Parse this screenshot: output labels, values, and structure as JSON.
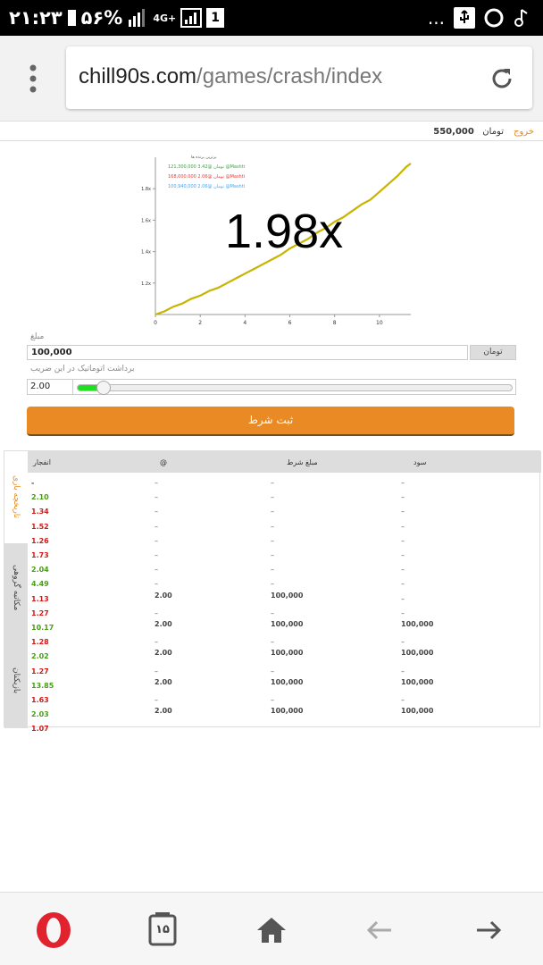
{
  "status_bar": {
    "time": "۲۱:۲۳",
    "battery_pct": "۵۶%",
    "network": "4G+",
    "notif_count": "1",
    "more": "..."
  },
  "browser": {
    "url_host": "chill90s.com",
    "url_path": "/games/crash/index",
    "tabs_count": "۱۵"
  },
  "header": {
    "logout_label": "خروج",
    "balance": "550,000",
    "currency": "تومان"
  },
  "game": {
    "multiplier": "1.98x",
    "winners": {
      "title": "برترین برنده ها",
      "entries": [
        {
          "text": "121,300,000 3.42@ تومان @Mashti",
          "color": "#43a047"
        },
        {
          "text": "168,000,000 2.06@ تومان @Mashti",
          "color": "#e53935"
        },
        {
          "text": "100,940,000 2.06@ تومان @Mashti",
          "color": "#42a5f5"
        }
      ]
    },
    "chart_data": {
      "type": "line",
      "x_ticks": [
        "0",
        "2",
        "4",
        "6",
        "8",
        "10"
      ],
      "y_ticks": [
        "1.2x",
        "1.4x",
        "1.6x",
        "1.8x"
      ],
      "xlim": [
        0,
        11.4
      ],
      "ylim": [
        1.0,
        2.0
      ],
      "line_color": "#c8b400",
      "series": [
        {
          "x": [
            0,
            0.4,
            0.8,
            1.2,
            1.6,
            2.0,
            2.4,
            2.8,
            3.2,
            3.6,
            4.0,
            4.4,
            4.8,
            5.2,
            5.6,
            6.0,
            6.4,
            6.8,
            7.2,
            7.6,
            8.0,
            8.4,
            8.8,
            9.2,
            9.6,
            10.0,
            10.4,
            10.8,
            11.2,
            11.4
          ],
          "y": [
            1.0,
            1.02,
            1.05,
            1.07,
            1.1,
            1.12,
            1.15,
            1.17,
            1.2,
            1.23,
            1.26,
            1.29,
            1.32,
            1.35,
            1.38,
            1.42,
            1.45,
            1.48,
            1.52,
            1.55,
            1.59,
            1.62,
            1.66,
            1.7,
            1.73,
            1.78,
            1.83,
            1.88,
            1.94,
            1.96
          ]
        }
      ]
    }
  },
  "bet_form": {
    "amount_label": "مبلغ",
    "amount_value": "100,000",
    "amount_currency": "تومان",
    "auto_label": "برداشت اتوماتیک در این ضریب",
    "auto_value": "2.00",
    "slider_fraction": 0.06,
    "submit_label": "ثبت شرط"
  },
  "table": {
    "side_tabs": [
      {
        "label": "تاریخچه بازی",
        "active": true
      },
      {
        "label": "مکاتبه گروهی",
        "active": false
      },
      {
        "label": "بازیکنان",
        "active": false
      }
    ],
    "headers": {
      "crash": "انفجار",
      "at": "@",
      "amount": "مبلغ شرط",
      "profit": "سود"
    },
    "rows": [
      {
        "crash": "-",
        "c": "dash",
        "at": "–",
        "amount": "–",
        "profit": "–"
      },
      {
        "crash": "2.10",
        "c": "green",
        "at": "–",
        "amount": "–",
        "profit": "–"
      },
      {
        "crash": "1.34",
        "c": "red",
        "at": "–",
        "amount": "–",
        "profit": "–"
      },
      {
        "crash": "1.52",
        "c": "red",
        "at": "–",
        "amount": "–",
        "profit": "–"
      },
      {
        "crash": "1.26",
        "c": "red",
        "at": "–",
        "amount": "–",
        "profit": "–"
      },
      {
        "crash": "1.73",
        "c": "red",
        "at": "–",
        "amount": "–",
        "profit": "–"
      },
      {
        "crash": "2.04",
        "c": "green",
        "at": "–",
        "amount": "–",
        "profit": "–"
      },
      {
        "crash": "4.49",
        "c": "green",
        "at": "–",
        "amount": "–",
        "profit": "–"
      },
      {
        "crash": "1.13",
        "c": "red",
        "at": "2.00",
        "amount": "100,000",
        "profit": "–"
      },
      {
        "crash": "1.27",
        "c": "red",
        "at": "–",
        "amount": "–",
        "profit": "–"
      },
      {
        "crash": "10.17",
        "c": "green",
        "at": "2.00",
        "amount": "100,000",
        "profit": "100,000"
      },
      {
        "crash": "1.28",
        "c": "red",
        "at": "–",
        "amount": "–",
        "profit": "–"
      },
      {
        "crash": "2.02",
        "c": "green",
        "at": "2.00",
        "amount": "100,000",
        "profit": "100,000"
      },
      {
        "crash": "1.27",
        "c": "red",
        "at": "–",
        "amount": "–",
        "profit": "–"
      },
      {
        "crash": "13.85",
        "c": "green",
        "at": "2.00",
        "amount": "100,000",
        "profit": "100,000"
      },
      {
        "crash": "1.63",
        "c": "red",
        "at": "–",
        "amount": "–",
        "profit": "–"
      },
      {
        "crash": "2.03",
        "c": "green",
        "at": "2.00",
        "amount": "100,000",
        "profit": "100,000"
      },
      {
        "crash": "1.07",
        "c": "red",
        "at": "",
        "amount": "",
        "profit": ""
      }
    ]
  },
  "colors": {
    "accent": "#e98a24",
    "slider": "#1fe01f",
    "win": "#4a9c1a",
    "loss": "#d11a1a"
  }
}
